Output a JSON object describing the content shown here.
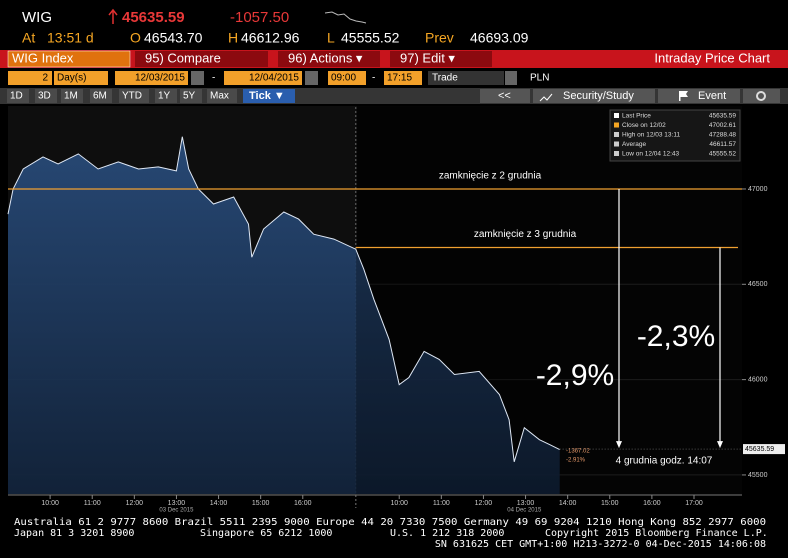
{
  "ui": {
    "ticker": "WIG",
    "last": "45635.59",
    "change": "-1057.50",
    "at_label": "At",
    "at_time": "13:51 d",
    "open_label": "O",
    "open": "46543.70",
    "high_label": "H",
    "high": "46612.96",
    "low_label": "L",
    "low": "45555.52",
    "prev_label": "Prev",
    "prev": "46693.09",
    "security": "WIG Index",
    "compare": "95) Compare",
    "actions": "96) Actions ▾",
    "edit": "97) Edit ▾",
    "view_title": "Intraday Price Chart",
    "days": "2",
    "days_unit": "Day(s)",
    "date_from": "12/03/2015",
    "dash": "-",
    "date_to": "12/04/2015",
    "time_from": "09:00",
    "time_to": "17:15",
    "mode": "Trade",
    "currency": "PLN",
    "ranges": [
      "1D",
      "3D",
      "1M",
      "6M",
      "YTD",
      "1Y",
      "5Y",
      "Max"
    ],
    "tick_button": "Tick ▼",
    "back": "<<",
    "study": "Security/Study",
    "event": "Event",
    "legend": [
      {
        "label": "Last Price",
        "value": "45635.59",
        "color": "#ffffff"
      },
      {
        "label": "Close on 12/02",
        "value": "47002.61",
        "color": "#f5a623"
      },
      {
        "label": "High on 12/03 13:11",
        "value": "47288.48",
        "color": "#cccccc"
      },
      {
        "label": "Average",
        "value": "46611.57",
        "color": "#cccccc"
      },
      {
        "label": "Low on 12/04 12:43",
        "value": "45555.52",
        "color": "#cccccc"
      }
    ],
    "footer": [
      "Australia 61 2 9777 8600 Brazil 5511 2395 9000 Europe 44 20 7330 7500 Germany 49 69 9204 1210 Hong Kong 852 2977 6000",
      "Japan 81 3 3201 8900",
      "Singapore 65 6212 1000",
      "U.S. 1 212 318 2000",
      "Copyright 2015 Bloomberg Finance L.P.",
      "SN 631625 CET  GMT+1:00 H213-3272-0 04-Dec-2015 14:06:08"
    ]
  },
  "chart_data": {
    "type": "line",
    "x": [
      9.0,
      9.12,
      9.36,
      9.83,
      10.19,
      10.67,
      11.14,
      11.62,
      12.1,
      12.57,
      13.0,
      13.14,
      13.29,
      13.52,
      13.88,
      14.36,
      14.71,
      14.79,
      15.07,
      15.55,
      15.9,
      16.26,
      16.74,
      17.26,
      17.45,
      17.69,
      18.05,
      18.29,
      18.52,
      18.88,
      19.24,
      19.6,
      20.19,
      20.67,
      20.9,
      21.02,
      21.26,
      21.62,
      21.86,
      22.1
    ],
    "series": [
      {
        "name": "Last Price",
        "color": "#dfe8f5",
        "values": [
          46868,
          47000,
          47105,
          47168,
          47131,
          47184,
          47105,
          47142,
          47105,
          47116,
          47095,
          47274,
          47105,
          47000,
          46921,
          46958,
          46816,
          46642,
          46790,
          46879,
          46842,
          46763,
          46737,
          46684,
          46579,
          46421,
          46211,
          45974,
          46011,
          46148,
          46106,
          46027,
          46043,
          45922,
          45790,
          45569,
          45748,
          45685,
          45659,
          45633
        ]
      }
    ],
    "last_price": 45635.59,
    "xlim": [
      9,
      26.43
    ],
    "ylim": [
      45400,
      47430
    ],
    "yticks": [
      45500,
      46000,
      46500,
      47000
    ],
    "xticks": [
      {
        "value": 10,
        "label": "10:00"
      },
      {
        "value": 11,
        "label": "11:00"
      },
      {
        "value": 12,
        "label": "12:00"
      },
      {
        "value": 13,
        "label": "13:00"
      },
      {
        "value": 14,
        "label": "14:00"
      },
      {
        "value": 15,
        "label": "15:00"
      },
      {
        "value": 16,
        "label": "16:00"
      },
      {
        "value": 18.29,
        "label": "10:00"
      },
      {
        "value": 19.29,
        "label": "11:00"
      },
      {
        "value": 20.29,
        "label": "12:00"
      },
      {
        "value": 21.29,
        "label": "13:00"
      },
      {
        "value": 22.29,
        "label": "14:00"
      },
      {
        "value": 23.29,
        "label": "15:00"
      },
      {
        "value": 24.29,
        "label": "16:00"
      },
      {
        "value": 25.29,
        "label": "17:00"
      }
    ],
    "date_labels": [
      {
        "value": 13.0,
        "label": "03 Dec 2015"
      },
      {
        "value": 21.26,
        "label": "04 Dec 2015"
      }
    ],
    "day_break": 17.26,
    "reference_lines": [
      {
        "value": 47000,
        "label": "zamknięcie z 2 grudnia"
      },
      {
        "value": 46693.09,
        "label": "zamknięcie z 3 grudnia"
      }
    ],
    "annotations": [
      "-2,9%",
      "-2,3%",
      "4 grudnia godz. 14:07"
    ],
    "change_labels": [
      "-1367.02",
      "-2.91%"
    ]
  }
}
